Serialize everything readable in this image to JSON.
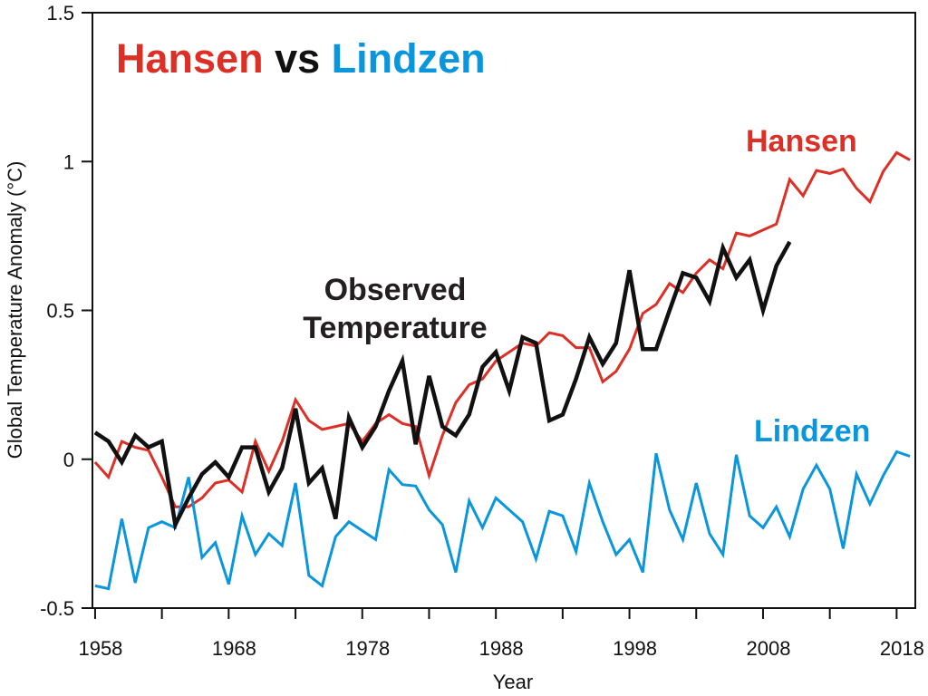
{
  "chart_data": {
    "type": "line",
    "title_parts": [
      {
        "text": "Hansen",
        "color": "#dc3027"
      },
      {
        "text": "vs",
        "color": "#111111"
      },
      {
        "text": "Lindzen",
        "color": "#0a96dc"
      }
    ],
    "xlabel": "Year",
    "ylabel": "Global Temperature Anomaly (°C)",
    "xlim": [
      1957.8,
      2019.4
    ],
    "ylim": [
      -0.5,
      1.5
    ],
    "x_ticks": [
      1958,
      1968,
      1978,
      1988,
      1998,
      2008,
      2018
    ],
    "y_ticks": [
      -0.5,
      0,
      0.5,
      1,
      1.5
    ],
    "y_tick_labels": [
      "-0.5",
      "0",
      "0.5",
      "1",
      "1.5"
    ],
    "grid": false,
    "annotations": {
      "hansen": "Hansen",
      "lindzen": "Lindzen",
      "observed_line1": "Observed",
      "observed_line2": "Temperature"
    },
    "series": [
      {
        "name": "Hansen",
        "color": "#dc3027",
        "x_start": 1958,
        "values": [
          -0.01,
          -0.06,
          0.06,
          0.04,
          0.03,
          -0.06,
          -0.16,
          -0.16,
          -0.13,
          -0.08,
          -0.07,
          -0.11,
          0.06,
          -0.04,
          0.06,
          0.2,
          0.13,
          0.1,
          0.11,
          0.12,
          0.06,
          0.12,
          0.15,
          0.12,
          0.11,
          -0.055,
          0.08,
          0.19,
          0.25,
          0.27,
          0.33,
          0.36,
          0.39,
          0.38,
          0.425,
          0.415,
          0.375,
          0.375,
          0.26,
          0.295,
          0.37,
          0.49,
          0.52,
          0.59,
          0.56,
          0.625,
          0.67,
          0.64,
          0.76,
          0.75,
          0.77,
          0.79,
          0.94,
          0.885,
          0.97,
          0.96,
          0.975,
          0.91,
          0.865,
          0.967,
          1.03,
          1.005
        ]
      },
      {
        "name": "Lindzen",
        "color": "#0a96dc",
        "x_start": 1958,
        "values": [
          -0.425,
          -0.435,
          -0.2,
          -0.415,
          -0.23,
          -0.21,
          -0.23,
          -0.06,
          -0.33,
          -0.28,
          -0.42,
          -0.19,
          -0.32,
          -0.25,
          -0.29,
          -0.08,
          -0.39,
          -0.425,
          -0.26,
          -0.21,
          -0.24,
          -0.27,
          -0.035,
          -0.085,
          -0.09,
          -0.17,
          -0.22,
          -0.38,
          -0.14,
          -0.23,
          -0.13,
          -0.17,
          -0.21,
          -0.335,
          -0.175,
          -0.19,
          -0.31,
          -0.08,
          -0.21,
          -0.32,
          -0.27,
          -0.38,
          0.02,
          -0.17,
          -0.27,
          -0.08,
          -0.25,
          -0.32,
          0.015,
          -0.19,
          -0.23,
          -0.16,
          -0.26,
          -0.1,
          -0.02,
          -0.1,
          -0.3,
          -0.05,
          -0.15,
          -0.055,
          0.025,
          0.01
        ]
      },
      {
        "name": "Observed Temperature",
        "color": "#111111",
        "x_start": 1958,
        "values": [
          0.09,
          0.06,
          -0.01,
          0.08,
          0.04,
          0.06,
          -0.22,
          -0.13,
          -0.05,
          -0.01,
          -0.06,
          0.04,
          0.04,
          -0.11,
          -0.03,
          0.17,
          -0.08,
          -0.03,
          -0.2,
          0.14,
          0.04,
          0.11,
          0.23,
          0.33,
          0.05,
          0.28,
          0.11,
          0.08,
          0.15,
          0.31,
          0.36,
          0.23,
          0.41,
          0.39,
          0.13,
          0.15,
          0.27,
          0.41,
          0.32,
          0.39,
          0.635,
          0.37,
          0.37,
          0.5,
          0.625,
          0.61,
          0.53,
          0.71,
          0.61,
          0.67,
          0.5,
          0.65,
          0.73
        ]
      }
    ]
  }
}
